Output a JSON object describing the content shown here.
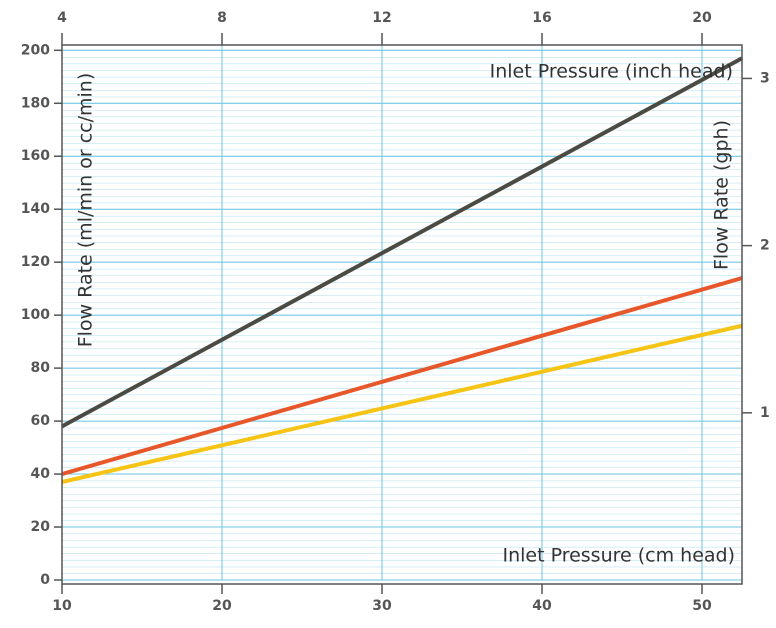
{
  "chart_data": {
    "type": "line",
    "title_x": "Inlet Pressure (cm head)",
    "title_x2": "Inlet Pressure (inch head)",
    "title_y": "Flow Rate (ml/min or cc/min)",
    "title_y2": "Flow Rate (gph)",
    "x": [
      10,
      52.5
    ],
    "series": [
      {
        "color": "#4b4b43",
        "values": [
          58,
          197
        ]
      },
      {
        "color": "#e8572a",
        "values": [
          40,
          114
        ]
      },
      {
        "color": "#f6c414",
        "values": [
          37,
          96
        ]
      }
    ],
    "xlim": [
      10,
      52.5
    ],
    "xticks": [
      10,
      20,
      30,
      40,
      50
    ],
    "x2lim": [
      4,
      21
    ],
    "x2ticks": [
      4,
      8,
      12,
      16,
      20
    ],
    "ylim": [
      0,
      202
    ],
    "yticks": [
      0,
      20,
      40,
      60,
      80,
      100,
      120,
      140,
      160,
      180,
      200
    ],
    "y2lim": [
      0,
      3.2
    ],
    "y2ticks": [
      1,
      2,
      3
    ],
    "grid": true
  }
}
